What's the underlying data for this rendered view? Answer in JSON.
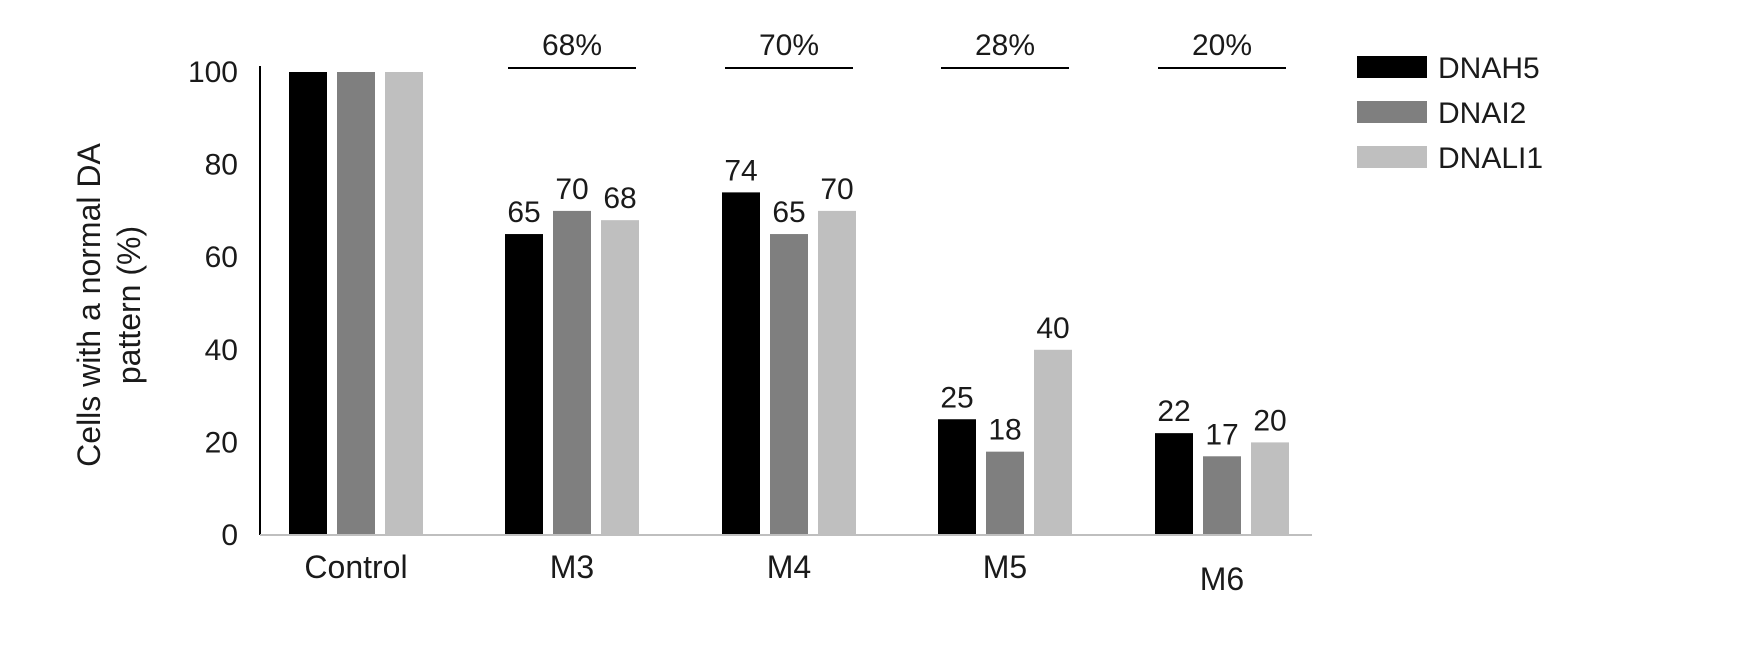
{
  "chart_data": {
    "type": "bar",
    "title": "",
    "xlabel": "",
    "ylabel_lines": [
      "Cells with a normal DA",
      "pattern (%)"
    ],
    "ylim": [
      0,
      100
    ],
    "yticks": [
      "0",
      "20",
      "40",
      "60",
      "80",
      "100"
    ],
    "categories": [
      "Control",
      "M3",
      "M4",
      "M5",
      "M6"
    ],
    "series": [
      {
        "name": "DNAH5",
        "color": "#000000",
        "values": [
          100,
          65,
          74,
          25,
          22
        ],
        "labels": [
          "",
          "65",
          "74",
          "25",
          "22"
        ]
      },
      {
        "name": "DNAI2",
        "color": "#7f7f7f",
        "values": [
          100,
          70,
          65,
          18,
          17
        ],
        "labels": [
          "",
          "70",
          "65",
          "18",
          "17"
        ]
      },
      {
        "name": "DNALI1",
        "color": "#bfbfbf",
        "values": [
          100,
          68,
          70,
          40,
          20
        ],
        "labels": [
          "",
          "68",
          "70",
          "40",
          "20"
        ]
      }
    ],
    "group_annotations": [
      "",
      "68%",
      "70%",
      "28%",
      "20%"
    ],
    "legend_position": "top-right",
    "grid": false
  }
}
